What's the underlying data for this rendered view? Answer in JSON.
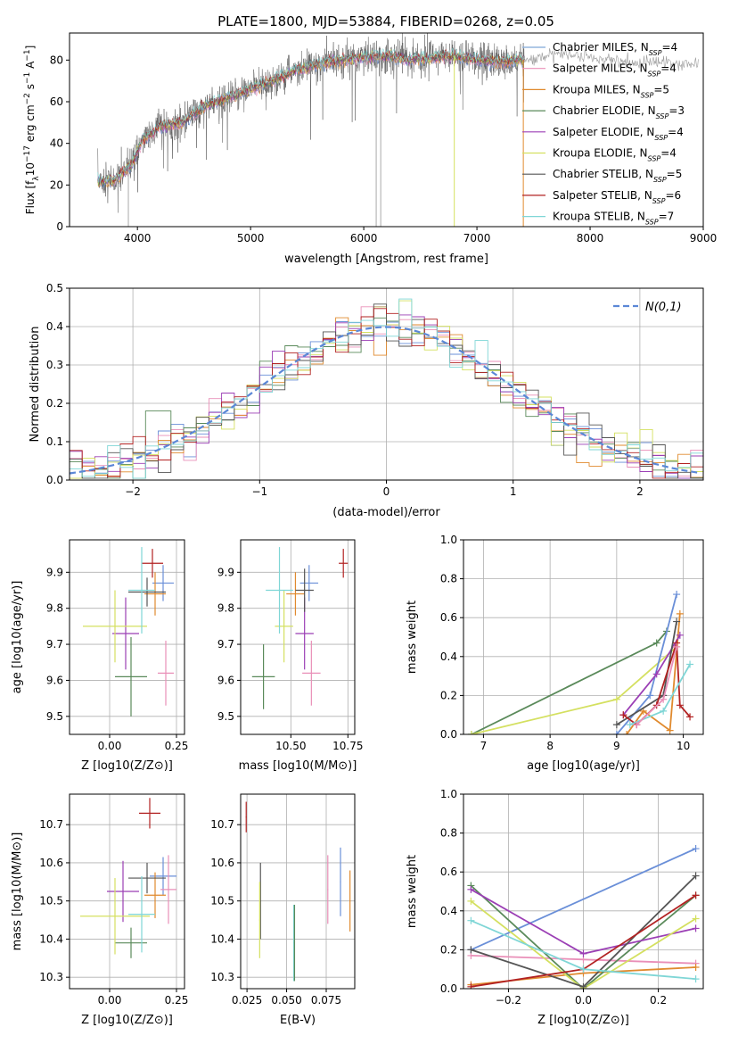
{
  "figure_title": "PLATE=1800, MJD=53884, FIBERID=0268, z=0.05",
  "colors": {
    "c1": "#6a8fd8",
    "c2": "#e98fb8",
    "c3": "#e08a2e",
    "c4": "#5a8a5a",
    "c5": "#9b3fb5",
    "c6": "#d4e060",
    "c7": "#555555",
    "c8": "#b22222",
    "c9": "#7fd6d6",
    "normal": "#5b87d6"
  },
  "legend_entries": [
    {
      "name": "Chabrier MILES, N",
      "sub": "SSP",
      "suffix": "=4",
      "color": "#7fa6d8"
    },
    {
      "name": "Salpeter MILES, N",
      "sub": "SSP",
      "suffix": "=4",
      "color": "#e98fb8"
    },
    {
      "name": "Kroupa MILES, N",
      "sub": "SSP",
      "suffix": "=5",
      "color": "#e08a2e"
    },
    {
      "name": "Chabrier ELODIE, N",
      "sub": "SSP",
      "suffix": "=3",
      "color": "#5a8a5a"
    },
    {
      "name": "Salpeter ELODIE, N",
      "sub": "SSP",
      "suffix": "=4",
      "color": "#9b3fb5"
    },
    {
      "name": "Kroupa ELODIE, N",
      "sub": "SSP",
      "suffix": "=4",
      "color": "#d4e060"
    },
    {
      "name": "Chabrier STELIB, N",
      "sub": "SSP",
      "suffix": "=5",
      "color": "#555555"
    },
    {
      "name": "Salpeter STELIB, N",
      "sub": "SSP",
      "suffix": "=6",
      "color": "#b22222"
    },
    {
      "name": "Kroupa STELIB, N",
      "sub": "SSP",
      "suffix": "=7",
      "color": "#7fd6d6"
    }
  ],
  "chart_data": [
    {
      "id": "spectrum",
      "type": "line",
      "xlabel": "wavelength [Angstrom, rest frame]",
      "ylabel": "Flux [f_λ10^-17 erg cm^-2 s^-1 A^-1]",
      "xlim": [
        3400,
        9000
      ],
      "ylim": [
        0,
        93
      ],
      "xticks": [
        4000,
        5000,
        6000,
        7000,
        8000,
        9000
      ],
      "yticks": [
        0,
        20,
        40,
        60,
        80
      ],
      "legend": "top-right",
      "continuum": [
        [
          3650,
          22
        ],
        [
          3800,
          22
        ],
        [
          3950,
          30
        ],
        [
          4050,
          42
        ],
        [
          4200,
          48
        ],
        [
          4400,
          50
        ],
        [
          4600,
          58
        ],
        [
          4800,
          62
        ],
        [
          5000,
          66
        ],
        [
          5200,
          70
        ],
        [
          5400,
          75
        ],
        [
          5600,
          78
        ],
        [
          5800,
          80
        ],
        [
          6000,
          81
        ],
        [
          6200,
          82
        ],
        [
          6400,
          80
        ],
        [
          6600,
          81
        ],
        [
          6800,
          82
        ],
        [
          7000,
          80
        ],
        [
          7200,
          79
        ],
        [
          7400,
          80
        ],
        [
          7600,
          82
        ],
        [
          7800,
          83
        ],
        [
          8000,
          81
        ],
        [
          8200,
          80
        ],
        [
          8400,
          79
        ],
        [
          8600,
          79
        ],
        [
          8800,
          78
        ],
        [
          8960,
          79
        ]
      ],
      "data_range": [
        3650,
        7420
      ],
      "model_range": [
        3650,
        8960
      ],
      "dips": [
        [
          3920,
          0
        ],
        [
          6110,
          0
        ],
        [
          6150,
          0
        ],
        [
          6800,
          0
        ],
        [
          7410,
          0
        ]
      ]
    },
    {
      "id": "residuals",
      "type": "step",
      "xlabel": "(data-model)/error",
      "ylabel": "Normed distribution",
      "xlim": [
        -2.5,
        2.5
      ],
      "ylim": [
        0,
        0.5
      ],
      "xticks": [
        -2,
        -1,
        0,
        1,
        2
      ],
      "yticks": [
        0.0,
        0.1,
        0.2,
        0.3,
        0.4,
        0.5
      ],
      "normal_label": "N(0,1)",
      "bin_width": 0.1,
      "grid": true
    },
    {
      "id": "age_vs_Z",
      "type": "errorbar",
      "xlabel": "Z [log10(Z/Z⊙)]",
      "ylabel": "age  [log10(age/yr)]",
      "xlim": [
        -0.15,
        0.28
      ],
      "ylim": [
        9.45,
        9.99
      ],
      "xticks": [
        0.0,
        0.25
      ],
      "yticks": [
        9.5,
        9.6,
        9.7,
        9.8,
        9.9
      ],
      "points": [
        {
          "x": 0.2,
          "y": 9.87,
          "xe": 0.04,
          "ye": 0.05,
          "c": "c1"
        },
        {
          "x": 0.21,
          "y": 9.62,
          "xe": 0.03,
          "ye": 0.09,
          "c": "c2"
        },
        {
          "x": 0.17,
          "y": 9.84,
          "xe": 0.04,
          "ye": 0.06,
          "c": "c3"
        },
        {
          "x": 0.08,
          "y": 9.61,
          "xe": 0.06,
          "ye": 0.11,
          "c": "c4"
        },
        {
          "x": 0.06,
          "y": 9.73,
          "xe": 0.05,
          "ye": 0.1,
          "c": "c5"
        },
        {
          "x": 0.02,
          "y": 9.75,
          "xe": 0.12,
          "ye": 0.1,
          "c": "c6"
        },
        {
          "x": 0.14,
          "y": 9.845,
          "xe": 0.07,
          "ye": 0.04,
          "c": "c7"
        },
        {
          "x": 0.16,
          "y": 9.925,
          "xe": 0.04,
          "ye": 0.04,
          "c": "c8"
        },
        {
          "x": 0.12,
          "y": 9.85,
          "xe": 0.05,
          "ye": 0.12,
          "c": "c9"
        }
      ]
    },
    {
      "id": "age_vs_mass",
      "type": "errorbar",
      "xlabel": "mass [log10(M/M⊙)]",
      "ylabel": "",
      "xlim": [
        10.28,
        10.78
      ],
      "ylim": [
        9.45,
        9.99
      ],
      "xticks": [
        10.5,
        10.75
      ],
      "yticks": [
        9.5,
        9.6,
        9.7,
        9.8,
        9.9
      ],
      "points": [
        {
          "x": 10.58,
          "y": 9.87,
          "xe": 0.04,
          "ye": 0.05,
          "c": "c1"
        },
        {
          "x": 10.59,
          "y": 9.62,
          "xe": 0.04,
          "ye": 0.09,
          "c": "c2"
        },
        {
          "x": 10.52,
          "y": 9.84,
          "xe": 0.04,
          "ye": 0.06,
          "c": "c3"
        },
        {
          "x": 10.38,
          "y": 9.61,
          "xe": 0.05,
          "ye": 0.09,
          "c": "c4"
        },
        {
          "x": 10.56,
          "y": 9.73,
          "xe": 0.04,
          "ye": 0.1,
          "c": "c5"
        },
        {
          "x": 10.47,
          "y": 9.75,
          "xe": 0.04,
          "ye": 0.1,
          "c": "c6"
        },
        {
          "x": 10.56,
          "y": 9.85,
          "xe": 0.04,
          "ye": 0.06,
          "c": "c7"
        },
        {
          "x": 10.73,
          "y": 9.925,
          "xe": 0.02,
          "ye": 0.04,
          "c": "c8"
        },
        {
          "x": 10.45,
          "y": 9.85,
          "xe": 0.06,
          "ye": 0.12,
          "c": "c9"
        }
      ]
    },
    {
      "id": "weight_vs_age",
      "type": "line",
      "xlabel": "age  [log10(age/yr)]",
      "ylabel": "mass weight",
      "xlim": [
        6.7,
        10.3
      ],
      "ylim": [
        0,
        1.0
      ],
      "xticks": [
        7,
        8,
        9,
        10
      ],
      "yticks": [
        0.0,
        0.2,
        0.4,
        0.6,
        0.8,
        1.0
      ],
      "series": [
        {
          "c": "c4",
          "pts": [
            [
              6.82,
              0.0
            ],
            [
              9.6,
              0.47
            ],
            [
              9.75,
              0.53
            ]
          ]
        },
        {
          "c": "c6",
          "pts": [
            [
              6.82,
              0.0
            ],
            [
              9.0,
              0.18
            ],
            [
              9.9,
              0.45
            ]
          ]
        },
        {
          "c": "c1",
          "pts": [
            [
              9.0,
              0.0
            ],
            [
              9.5,
              0.2
            ],
            [
              9.9,
              0.72
            ]
          ]
        },
        {
          "c": "c3",
          "pts": [
            [
              9.15,
              0.0
            ],
            [
              9.4,
              0.12
            ],
            [
              9.8,
              0.02
            ],
            [
              9.95,
              0.62
            ]
          ]
        },
        {
          "c": "c5",
          "pts": [
            [
              9.1,
              0.1
            ],
            [
              9.6,
              0.31
            ],
            [
              9.95,
              0.51
            ]
          ]
        },
        {
          "c": "c7",
          "pts": [
            [
              9.0,
              0.05
            ],
            [
              9.7,
              0.2
            ],
            [
              9.9,
              0.58
            ]
          ]
        },
        {
          "c": "c8",
          "pts": [
            [
              9.1,
              0.1
            ],
            [
              9.3,
              0.05
            ],
            [
              9.6,
              0.15
            ],
            [
              9.9,
              0.47
            ],
            [
              9.95,
              0.15
            ],
            [
              10.1,
              0.09
            ]
          ]
        },
        {
          "c": "c9",
          "pts": [
            [
              9.2,
              0.05
            ],
            [
              9.7,
              0.12
            ],
            [
              10.1,
              0.36
            ]
          ]
        },
        {
          "c": "c2",
          "pts": [
            [
              9.3,
              0.05
            ],
            [
              9.7,
              0.18
            ],
            [
              9.9,
              0.45
            ]
          ]
        }
      ]
    },
    {
      "id": "mass_vs_Z",
      "type": "errorbar",
      "xlabel": "Z [log10(Z/Z⊙)]",
      "ylabel": "mass [log10(M/M⊙)]",
      "xlim": [
        -0.15,
        0.28
      ],
      "ylim": [
        10.27,
        10.78
      ],
      "xticks": [
        0.0,
        0.25
      ],
      "yticks": [
        10.3,
        10.4,
        10.5,
        10.6,
        10.7
      ],
      "points": [
        {
          "x": 0.2,
          "y": 10.565,
          "xe": 0.05,
          "ye": 0.05,
          "c": "c1"
        },
        {
          "x": 0.22,
          "y": 10.53,
          "xe": 0.03,
          "ye": 0.09,
          "c": "c2"
        },
        {
          "x": 0.17,
          "y": 10.515,
          "xe": 0.04,
          "ye": 0.06,
          "c": "c3"
        },
        {
          "x": 0.08,
          "y": 10.39,
          "xe": 0.06,
          "ye": 0.04,
          "c": "c4"
        },
        {
          "x": 0.05,
          "y": 10.525,
          "xe": 0.06,
          "ye": 0.08,
          "c": "c5"
        },
        {
          "x": 0.02,
          "y": 10.46,
          "xe": 0.13,
          "ye": 0.1,
          "c": "c6"
        },
        {
          "x": 0.14,
          "y": 10.56,
          "xe": 0.07,
          "ye": 0.04,
          "c": "c7"
        },
        {
          "x": 0.15,
          "y": 10.73,
          "xe": 0.04,
          "ye": 0.04,
          "c": "c8"
        },
        {
          "x": 0.12,
          "y": 10.465,
          "xe": 0.05,
          "ye": 0.1,
          "c": "c9"
        }
      ]
    },
    {
      "id": "mass_vs_ebv",
      "type": "errorbar",
      "xlabel": "E(B-V)",
      "ylabel": "",
      "xlim": [
        0.021,
        0.093
      ],
      "ylim": [
        10.27,
        10.78
      ],
      "xticks": [
        0.025,
        0.05,
        0.075
      ],
      "yticks": [
        10.3,
        10.4,
        10.5,
        10.6,
        10.7
      ],
      "points": [
        {
          "x": 0.0245,
          "y": 10.72,
          "xe": 0.0003,
          "ye": 0.04,
          "c": "c8"
        },
        {
          "x": 0.0335,
          "y": 10.5,
          "xe": 0.0003,
          "ye": 0.1,
          "c": "c7"
        },
        {
          "x": 0.033,
          "y": 10.45,
          "xe": 0.0003,
          "ye": 0.1,
          "c": "c6"
        },
        {
          "x": 0.0545,
          "y": 10.39,
          "xe": 0.0003,
          "ye": 0.1,
          "c": "c9"
        },
        {
          "x": 0.055,
          "y": 10.39,
          "xe": 0.0003,
          "ye": 0.1,
          "c": "c4"
        },
        {
          "x": 0.076,
          "y": 10.53,
          "xe": 0.0003,
          "ye": 0.09,
          "c": "c2"
        },
        {
          "x": 0.084,
          "y": 10.55,
          "xe": 0.0003,
          "ye": 0.09,
          "c": "c1"
        },
        {
          "x": 0.09,
          "y": 10.5,
          "xe": 0.0003,
          "ye": 0.08,
          "c": "c3"
        }
      ]
    },
    {
      "id": "weight_vs_Z",
      "type": "line",
      "xlabel": "Z [log10(Z/Z⊙)]",
      "ylabel": "mass weight",
      "xlim": [
        -0.32,
        0.32
      ],
      "ylim": [
        0,
        1.0
      ],
      "xticks": [
        -0.2,
        0.0,
        0.2
      ],
      "yticks": [
        0.0,
        0.2,
        0.4,
        0.6,
        0.8,
        1.0
      ],
      "series": [
        {
          "c": "c1",
          "pts": [
            [
              -0.3,
              0.2
            ],
            [
              0.3,
              0.72
            ]
          ]
        },
        {
          "c": "c2",
          "pts": [
            [
              -0.3,
              0.17
            ],
            [
              0.0,
              0.15
            ],
            [
              0.3,
              0.13
            ]
          ]
        },
        {
          "c": "c3",
          "pts": [
            [
              -0.3,
              0.02
            ],
            [
              0.0,
              0.08
            ],
            [
              0.3,
              0.11
            ]
          ]
        },
        {
          "c": "c4",
          "pts": [
            [
              -0.3,
              0.53
            ],
            [
              0.0,
              0.0
            ],
            [
              0.3,
              0.48
            ]
          ]
        },
        {
          "c": "c5",
          "pts": [
            [
              -0.3,
              0.51
            ],
            [
              0.0,
              0.18
            ],
            [
              0.3,
              0.31
            ]
          ]
        },
        {
          "c": "c6",
          "pts": [
            [
              -0.3,
              0.45
            ],
            [
              0.0,
              0.0
            ],
            [
              0.3,
              0.36
            ]
          ]
        },
        {
          "c": "c7",
          "pts": [
            [
              -0.3,
              0.2
            ],
            [
              0.0,
              0.01
            ],
            [
              0.3,
              0.58
            ]
          ]
        },
        {
          "c": "c8",
          "pts": [
            [
              -0.3,
              0.01
            ],
            [
              0.0,
              0.1
            ],
            [
              0.3,
              0.48
            ]
          ]
        },
        {
          "c": "c9",
          "pts": [
            [
              -0.3,
              0.35
            ],
            [
              0.0,
              0.1
            ],
            [
              0.3,
              0.05
            ]
          ]
        }
      ]
    }
  ]
}
